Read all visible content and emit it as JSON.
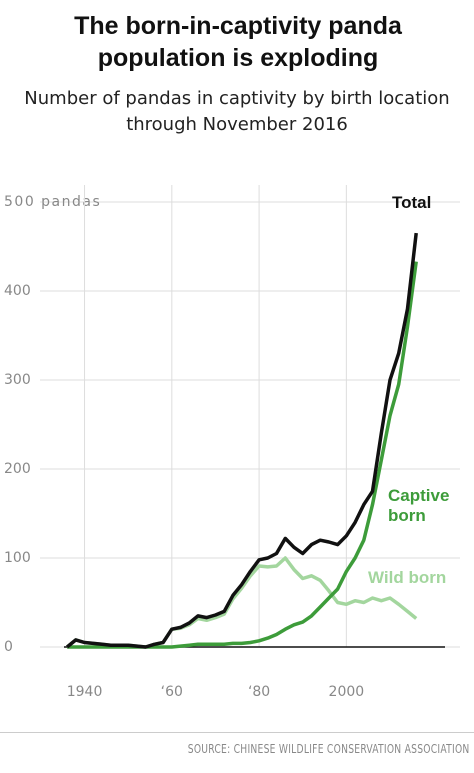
{
  "chart_data": {
    "type": "line",
    "title": "The born-in-captivity panda population is exploding",
    "subtitle": "Number of pandas in captivity by birth location through November 2016",
    "source": "SOURCE: CHINESE WILDLIFE CONSERVATION ASSOCIATION",
    "x": [
      1936,
      1938,
      1940,
      1942,
      1944,
      1946,
      1948,
      1950,
      1952,
      1954,
      1956,
      1958,
      1960,
      1962,
      1964,
      1966,
      1968,
      1970,
      1972,
      1974,
      1976,
      1978,
      1980,
      1982,
      1984,
      1986,
      1988,
      1990,
      1992,
      1994,
      1996,
      1998,
      2000,
      2002,
      2004,
      2006,
      2008,
      2010,
      2012,
      2014,
      2016
    ],
    "series": [
      {
        "name": "Total",
        "color": "#111111",
        "values": [
          0,
          8,
          5,
          4,
          3,
          2,
          2,
          2,
          1,
          0,
          3,
          5,
          20,
          22,
          27,
          35,
          33,
          36,
          40,
          58,
          70,
          85,
          98,
          100,
          105,
          122,
          112,
          105,
          115,
          120,
          118,
          115,
          125,
          140,
          160,
          175,
          240,
          300,
          330,
          380,
          465
        ]
      },
      {
        "name": "Captive born",
        "color": "#3d9c3a",
        "values": [
          0,
          0,
          0,
          0,
          0,
          0,
          0,
          0,
          0,
          0,
          0,
          0,
          0,
          1,
          2,
          3,
          3,
          3,
          3,
          4,
          4,
          5,
          7,
          10,
          14,
          20,
          25,
          28,
          35,
          45,
          55,
          65,
          85,
          100,
          120,
          160,
          210,
          260,
          295,
          360,
          433
        ]
      },
      {
        "name": "Wild born",
        "color": "#a3d69e",
        "values": [
          0,
          8,
          5,
          4,
          3,
          2,
          2,
          2,
          1,
          0,
          3,
          5,
          20,
          21,
          25,
          32,
          30,
          33,
          37,
          54,
          66,
          80,
          91,
          90,
          91,
          100,
          87,
          77,
          80,
          75,
          63,
          50,
          48,
          52,
          50,
          55,
          52,
          55,
          48,
          40,
          32
        ]
      }
    ],
    "xlim": [
      1933,
      2021
    ],
    "xticks": [
      1940,
      {
        "value": 1960,
        "label": "‘60"
      },
      {
        "value": 1980,
        "label": "‘80"
      },
      2000
    ],
    "ylim": [
      0,
      500
    ],
    "yticks": [
      0,
      100,
      200,
      300,
      {
        "value": 400,
        "label": "400"
      },
      {
        "value": 500,
        "label": "500 pandas"
      }
    ],
    "grid": true
  }
}
